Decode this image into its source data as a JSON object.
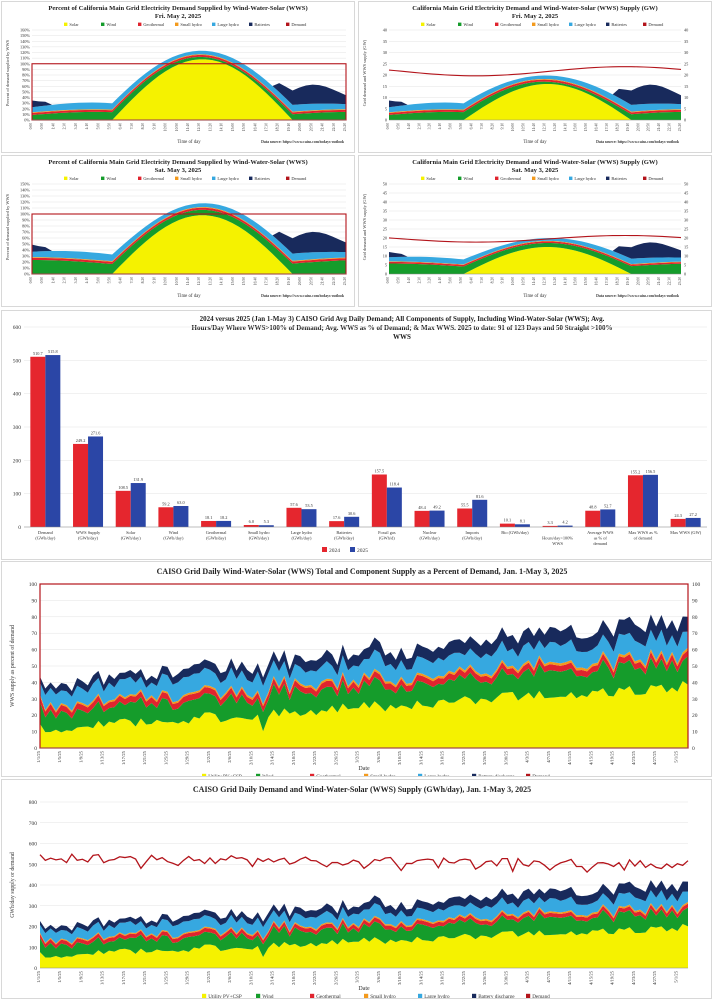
{
  "colors": {
    "solar": "#f5f200",
    "wind": "#159c2b",
    "geothermal": "#e0242e",
    "small_hydro": "#f39a1d",
    "large_hydro": "#36a8e0",
    "batteries": "#182a5c",
    "demand": "#b3141b",
    "bar2024": "#e5262e",
    "bar2025": "#2b46a6"
  },
  "legend_wws": [
    "Solar",
    "Wind",
    "Geothermal",
    "Small hydro",
    "Large hydro",
    "Batteries",
    "Demand"
  ],
  "legend_daily": [
    "Utility PV+CSP",
    "Wind",
    "Geothermal",
    "Small hydro",
    "Large hydro",
    "Battery discharge",
    "Demand"
  ],
  "time_labels": [
    "0:00",
    "0:50",
    "1:40",
    "2:30",
    "3:20",
    "4:10",
    "5:00",
    "5:50",
    "6:40",
    "7:30",
    "8:20",
    "9:10",
    "10:00",
    "10:50",
    "11:40",
    "12:30",
    "13:20",
    "14:10",
    "15:00",
    "15:50",
    "16:40",
    "17:30",
    "18:20",
    "19:10",
    "20:00",
    "20:50",
    "21:40",
    "22:30",
    "23:20"
  ],
  "date_labels": [
    "1/1/25",
    "1/5/25",
    "1/9/25",
    "1/13/25",
    "1/17/25",
    "1/21/25",
    "1/25/25",
    "1/29/25",
    "2/2/25",
    "2/6/25",
    "2/10/25",
    "2/14/25",
    "2/18/25",
    "2/22/25",
    "2/26/25",
    "3/2/25",
    "3/6/25",
    "3/10/25",
    "3/14/25",
    "3/18/25",
    "3/22/25",
    "3/26/25",
    "3/30/25",
    "4/3/25",
    "4/7/25",
    "4/11/25",
    "4/15/25",
    "4/19/25",
    "4/23/25",
    "4/27/25",
    "5/1/25"
  ],
  "chart_data": [
    {
      "id": "pct_may2",
      "type": "area",
      "title": "Percent of California Main Grid Electricity Demand Supplied by Wind-Water-Solar (WWS)",
      "subtitle": "Fri. May 2, 2025",
      "xlabel": "Time of day",
      "ylabel": "Percent of demand supplied by WWS",
      "ylim": [
        0,
        160
      ],
      "yticks": [
        "0%",
        "10%",
        "20%",
        "30%",
        "40%",
        "50%",
        "60%",
        "70%",
        "80%",
        "90%",
        "100%",
        "110%",
        "120%",
        "130%",
        "140%",
        "150%",
        "160%"
      ],
      "source": "Data source: https://www.caiso.com/todays-outlook",
      "demand_line": 100
    },
    {
      "id": "gw_may2",
      "type": "area",
      "title": "California Main Grid Electricity Demand and Wind-Water-Solar (WWS) Supply (GW)",
      "subtitle": "Fri. May 2, 2025",
      "xlabel": "Time of day",
      "ylabel": "Grid demand and WWS supply (GW)",
      "ylim": [
        0,
        40
      ],
      "yticks": [
        "0",
        "5",
        "10",
        "15",
        "20",
        "25",
        "30",
        "35",
        "40"
      ],
      "source": "Data source: https://www.caiso.com/todays-outlook"
    },
    {
      "id": "pct_may3",
      "type": "area",
      "title": "Percent of California Main Grid Electricity Demand Supplied by Wind-Water-Solar (WWS)",
      "subtitle": "Sat. May 3, 2025",
      "xlabel": "Time of day",
      "ylabel": "Percent of demand supplied by WWS",
      "ylim": [
        0,
        150
      ],
      "yticks": [
        "0%",
        "10%",
        "20%",
        "30%",
        "40%",
        "50%",
        "60%",
        "70%",
        "80%",
        "90%",
        "100%",
        "110%",
        "120%",
        "130%",
        "140%",
        "150%"
      ],
      "source": "Data source: https://www.caiso.com/todays-outlook",
      "demand_line": 100
    },
    {
      "id": "gw_may3",
      "type": "area",
      "title": "California Main Grid Electricity Demand and Wind-Water-Solar (WWS) Supply (GW)",
      "subtitle": "Sat. May 3, 2025",
      "xlabel": "Time of day",
      "ylabel": "Grid demand and WWS supply (GW)",
      "ylim": [
        0,
        50
      ],
      "yticks": [
        "0",
        "5",
        "10",
        "15",
        "20",
        "25",
        "30",
        "35",
        "40",
        "45",
        "50"
      ],
      "source": "Data source: https://www.caiso.com/todays-outlook"
    },
    {
      "id": "compare",
      "type": "bar",
      "title": "2024 versus 2025 (Jan 1-May 3) CAISO Grid Avg Daily Demand; All Components of Supply, Including Wind-Water-Solar (WWS); Avg. Hours/Day Where WWS>100% of Demand; Avg. WWS as % of Demand; & Max WWS. 2025 to date: 91 of 123 Days and 50 Straight >100% WWS",
      "ylim": [
        0,
        600
      ],
      "yticks": [
        "0",
        "100",
        "200",
        "300",
        "400",
        "500",
        "600"
      ],
      "categories": [
        "Demand (GWh/day)",
        "WWS Supply (GWh/day)",
        "Solar (GWh/day)",
        "Wind (GWh/day)",
        "Geothermal (GWh/day)",
        "Small hydro (GWh/day)",
        "Large hydro (GWh/day)",
        "Batteries (GWh/day)",
        "Fossil gas (GWh/d)",
        "Nuclear (GWh/day)",
        "Imports (GWh/day)",
        "Bio (GWh/day)",
        "Hours/day>100% WWS",
        "Average WWS as % of demand",
        "Max WWS as % of demand",
        "Max WWS (GW)"
      ],
      "series": [
        {
          "name": "2024",
          "values": [
            510.7,
            249.2,
            108.5,
            59.2,
            18.1,
            6.0,
            57.6,
            17.6,
            157.5,
            48.4,
            55.5,
            10.1,
            3.3,
            48.8,
            155.2,
            24.3
          ]
        },
        {
          "name": "2025",
          "values": [
            515.8,
            271.6,
            131.9,
            63.0,
            18.2,
            5.3,
            53.5,
            30.6,
            118.4,
            49.2,
            81.6,
            8.1,
            4.2,
            52.7,
            156.5,
            27.2
          ]
        }
      ],
      "labels_2024": [
        "510.7",
        "249.2",
        "108.5",
        "59.2",
        "18.1",
        "6.0",
        "57.6",
        "17.6",
        "157.5",
        "48.4",
        "55.5",
        "10.1",
        "3.3",
        "48.8",
        "155.2",
        "24.3"
      ],
      "labels_2025": [
        "515.8",
        "271.6",
        "131.9",
        "63.0",
        "18.2",
        "5.3",
        "53.5",
        "30.6",
        "118.4",
        "49.2",
        "81.6",
        "8.1",
        "4.2",
        "52.7",
        "156.5",
        "27.2"
      ]
    },
    {
      "id": "daily_pct",
      "type": "area",
      "title": "CAISO Grid Daily Wind-Water-Solar (WWS) Total and Component Supply as a Percent of Demand, Jan. 1-May 3, 2025",
      "xlabel": "Date",
      "ylabel": "WWS supply as percent of demand",
      "ylim": [
        0,
        100
      ],
      "yticks": [
        "0",
        "10",
        "20",
        "30",
        "40",
        "50",
        "60",
        "70",
        "80",
        "90",
        "100"
      ],
      "demand_line": 100
    },
    {
      "id": "daily_gwh",
      "type": "area",
      "title": "CAISO Grid Daily Demand and Wind-Water-Solar (WWS) Supply (GWh/day), Jan. 1-May 3, 2025",
      "xlabel": "Date",
      "ylabel": "GWh/day supply or demand",
      "ylim": [
        0,
        800
      ],
      "yticks": [
        "0",
        "100",
        "200",
        "300",
        "400",
        "500",
        "600",
        "700",
        "800"
      ]
    }
  ]
}
